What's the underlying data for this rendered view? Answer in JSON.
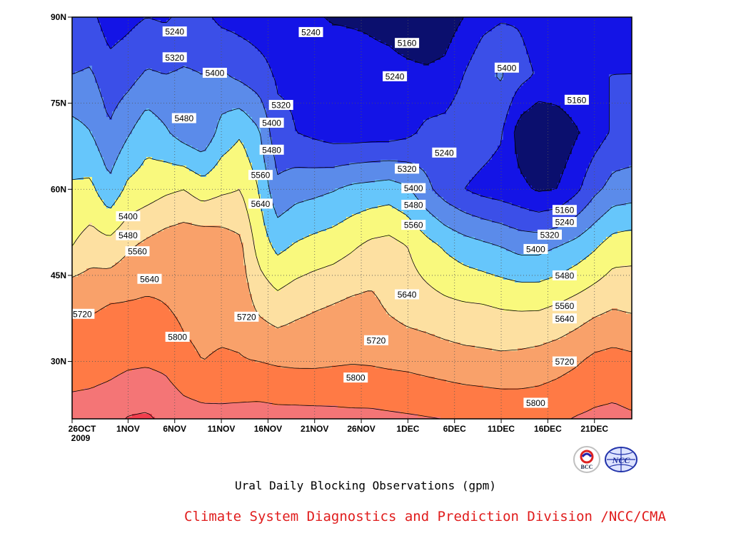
{
  "chart_data": {
    "type": "heatmap",
    "subtype": "filled contour",
    "title": "Ural Daily Blocking Observations (gpm)",
    "credit": "Climate System Diagnostics and Prediction Division /NCC/CMA",
    "x_tick_labels": [
      {
        "line1": "26OCT",
        "line2": "2009"
      },
      {
        "line1": "1NOV"
      },
      {
        "line1": "6NOV"
      },
      {
        "line1": "11NOV"
      },
      {
        "line1": "16NOV"
      },
      {
        "line1": "21NOV"
      },
      {
        "line1": "26NOV"
      },
      {
        "line1": "1DEC"
      },
      {
        "line1": "6DEC"
      },
      {
        "line1": "11DEC"
      },
      {
        "line1": "16DEC"
      },
      {
        "line1": "21DEC"
      }
    ],
    "x_tick_days": [
      0,
      6,
      11,
      16,
      21,
      26,
      31,
      36,
      41,
      46,
      51,
      56
    ],
    "x_range_days": [
      0,
      60
    ],
    "y_ticks": [
      {
        "label": "30N",
        "lat": 30
      },
      {
        "label": "45N",
        "lat": 45
      },
      {
        "label": "60N",
        "lat": 60
      },
      {
        "label": "75N",
        "lat": 75
      },
      {
        "label": "90N",
        "lat": 90
      }
    ],
    "y_range": [
      20,
      90
    ],
    "grid": "dotted",
    "color_levels": [
      {
        "max": 5160,
        "color": "#0b0f6e"
      },
      {
        "max": 5240,
        "color": "#1414e6"
      },
      {
        "max": 5320,
        "color": "#3b4fe8"
      },
      {
        "max": 5400,
        "color": "#5b8bea"
      },
      {
        "max": 5480,
        "color": "#66c6fb"
      },
      {
        "max": 5560,
        "color": "#f9f97d"
      },
      {
        "max": 5640,
        "color": "#fde0a1"
      },
      {
        "max": 5720,
        "color": "#f9a16a"
      },
      {
        "max": 5800,
        "color": "#ff7a45"
      },
      {
        "max": 5880,
        "color": "#f47576"
      },
      {
        "max": 9999,
        "color": "#f23e4e"
      }
    ],
    "contour_levels": [
      5160,
      5240,
      5320,
      5400,
      5480,
      5560,
      5640,
      5720,
      5800,
      5880
    ],
    "contour_labels": [
      {
        "value": "5240",
        "day": 11.0,
        "lat": 87.5
      },
      {
        "value": "5240",
        "day": 25.6,
        "lat": 87.4
      },
      {
        "value": "5160",
        "day": 35.9,
        "lat": 85.5
      },
      {
        "value": "5320",
        "day": 11.0,
        "lat": 83.0
      },
      {
        "value": "5400",
        "day": 46.6,
        "lat": 81.2
      },
      {
        "value": "5400",
        "day": 15.3,
        "lat": 80.3
      },
      {
        "value": "5240",
        "day": 34.6,
        "lat": 79.7
      },
      {
        "value": "5160",
        "day": 54.1,
        "lat": 75.6
      },
      {
        "value": "5320",
        "day": 22.4,
        "lat": 74.7
      },
      {
        "value": "5480",
        "day": 12.0,
        "lat": 72.4
      },
      {
        "value": "5400",
        "day": 21.4,
        "lat": 71.6
      },
      {
        "value": "5480",
        "day": 21.4,
        "lat": 66.9
      },
      {
        "value": "5240",
        "day": 39.9,
        "lat": 66.4
      },
      {
        "value": "5320",
        "day": 35.9,
        "lat": 63.6
      },
      {
        "value": "5560",
        "day": 20.2,
        "lat": 62.5
      },
      {
        "value": "5400",
        "day": 36.6,
        "lat": 60.2
      },
      {
        "value": "5640",
        "day": 20.2,
        "lat": 57.5
      },
      {
        "value": "5480",
        "day": 36.6,
        "lat": 57.3
      },
      {
        "value": "5160",
        "day": 52.8,
        "lat": 56.4
      },
      {
        "value": "5400",
        "day": 6.0,
        "lat": 55.3
      },
      {
        "value": "5240",
        "day": 52.8,
        "lat": 54.3
      },
      {
        "value": "5560",
        "day": 36.6,
        "lat": 53.8
      },
      {
        "value": "5320",
        "day": 51.2,
        "lat": 52.1
      },
      {
        "value": "5480",
        "day": 6.0,
        "lat": 52.0
      },
      {
        "value": "5400",
        "day": 49.7,
        "lat": 49.6
      },
      {
        "value": "5560",
        "day": 7.0,
        "lat": 49.2
      },
      {
        "value": "5480",
        "day": 52.8,
        "lat": 45.0
      },
      {
        "value": "5640",
        "day": 8.3,
        "lat": 44.4
      },
      {
        "value": "5640",
        "day": 35.9,
        "lat": 41.7
      },
      {
        "value": "5720",
        "day": 1.1,
        "lat": 38.3
      },
      {
        "value": "5560",
        "day": 52.8,
        "lat": 39.7
      },
      {
        "value": "5720",
        "day": 18.7,
        "lat": 37.8
      },
      {
        "value": "5640",
        "day": 52.8,
        "lat": 37.5
      },
      {
        "value": "5800",
        "day": 11.3,
        "lat": 34.3
      },
      {
        "value": "5720",
        "day": 32.6,
        "lat": 33.7
      },
      {
        "value": "5720",
        "day": 52.8,
        "lat": 30.0
      },
      {
        "value": "5800",
        "day": 30.4,
        "lat": 27.2
      },
      {
        "value": "5800",
        "day": 49.7,
        "lat": 22.8
      }
    ],
    "grid_data": {
      "x_days": [
        0,
        2,
        4,
        6,
        8,
        10,
        12,
        14,
        16,
        18,
        20,
        22,
        24,
        26,
        28,
        30,
        32,
        34,
        36,
        38,
        40,
        42,
        44,
        46,
        48,
        50,
        52,
        54,
        56,
        58,
        60
      ],
      "lats": [
        20,
        30,
        40,
        50,
        60,
        70,
        80,
        90
      ],
      "z": [
        [
          5840,
          5845,
          5860,
          5885,
          5892,
          5865,
          5840,
          5830,
          5825,
          5830,
          5835,
          5830,
          5830,
          5828,
          5825,
          5820,
          5820,
          5815,
          5810,
          5805,
          5800,
          5795,
          5790,
          5785,
          5780,
          5780,
          5790,
          5805,
          5815,
          5820,
          5810
        ],
        [
          5755,
          5760,
          5770,
          5785,
          5790,
          5780,
          5740,
          5720,
          5730,
          5725,
          5720,
          5710,
          5705,
          5705,
          5710,
          5715,
          5712,
          5705,
          5700,
          5690,
          5680,
          5670,
          5665,
          5660,
          5665,
          5675,
          5690,
          5710,
          5740,
          5750,
          5740
        ],
        [
          5710,
          5710,
          5720,
          5725,
          5730,
          5720,
          5700,
          5690,
          5690,
          5690,
          5620,
          5590,
          5615,
          5630,
          5640,
          5655,
          5660,
          5625,
          5600,
          5590,
          5575,
          5565,
          5560,
          5550,
          5545,
          5545,
          5560,
          5585,
          5610,
          5630,
          5620
        ],
        [
          5560,
          5600,
          5590,
          5630,
          5660,
          5685,
          5700,
          5705,
          5690,
          5660,
          5530,
          5460,
          5490,
          5510,
          5525,
          5550,
          5580,
          5590,
          5560,
          5510,
          5470,
          5440,
          5420,
          5400,
          5375,
          5375,
          5400,
          5430,
          5470,
          5520,
          5530
        ],
        [
          5490,
          5500,
          5420,
          5500,
          5520,
          5545,
          5560,
          5520,
          5545,
          5560,
          5480,
          5340,
          5370,
          5380,
          5395,
          5420,
          5430,
          5440,
          5410,
          5340,
          5280,
          5240,
          5215,
          5200,
          5180,
          5150,
          5160,
          5220,
          5300,
          5350,
          5360
        ],
        [
          5430,
          5400,
          5330,
          5390,
          5450,
          5410,
          5360,
          5330,
          5430,
          5470,
          5410,
          5260,
          5240,
          5220,
          5200,
          5195,
          5200,
          5200,
          5220,
          5260,
          5270,
          5300,
          5280,
          5250,
          5120,
          5080,
          5100,
          5150,
          5200,
          5250,
          5260
        ],
        [
          5320,
          5330,
          5270,
          5290,
          5330,
          5320,
          5330,
          5320,
          5330,
          5300,
          5270,
          5230,
          5230,
          5230,
          5230,
          5200,
          5180,
          5180,
          5175,
          5170,
          5180,
          5240,
          5300,
          5330,
          5270,
          5230,
          5230,
          5240,
          5240,
          5240,
          5240
        ],
        [
          5250,
          5260,
          5200,
          5220,
          5240,
          5230,
          5260,
          5260,
          5220,
          5210,
          5200,
          5200,
          5190,
          5170,
          5150,
          5150,
          5150,
          5140,
          5120,
          5110,
          5120,
          5160,
          5210,
          5230,
          5230,
          5200,
          5210,
          5220,
          5230,
          5230,
          5230
        ]
      ]
    }
  }
}
